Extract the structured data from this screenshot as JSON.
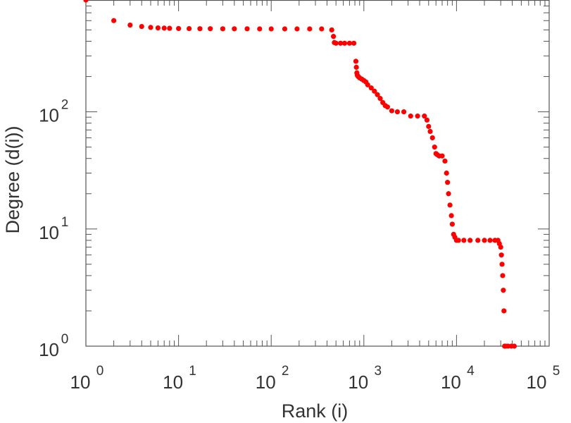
{
  "chart_data": {
    "type": "scatter",
    "title": "",
    "xlabel": "Rank (i)",
    "ylabel": "Degree (d(i))",
    "xscale": "log",
    "yscale": "log",
    "xlim": [
      1,
      100000
    ],
    "ylim": [
      1,
      900
    ],
    "grid": false,
    "legend": "none",
    "marker_color": "#ff0000",
    "x_ticks": [
      {
        "base": "10",
        "exp": "0"
      },
      {
        "base": "10",
        "exp": "1"
      },
      {
        "base": "10",
        "exp": "2"
      },
      {
        "base": "10",
        "exp": "3"
      },
      {
        "base": "10",
        "exp": "4"
      },
      {
        "base": "10",
        "exp": "5"
      }
    ],
    "y_ticks": [
      {
        "base": "10",
        "exp": "0"
      },
      {
        "base": "10",
        "exp": "1"
      },
      {
        "base": "10",
        "exp": "2"
      }
    ],
    "series": [
      {
        "x": [
          1,
          2,
          3,
          4,
          5,
          6,
          7,
          8,
          10,
          13,
          17,
          22,
          30,
          40,
          55,
          75,
          100,
          140,
          190,
          260,
          350,
          450,
          470,
          480,
          500,
          560,
          620,
          700,
          780,
          820,
          830,
          840,
          850,
          870,
          900,
          950,
          1000,
          1050,
          1100,
          1200,
          1300,
          1400,
          1500,
          1600,
          1700,
          1800,
          2000,
          2300,
          2700,
          3200,
          3800,
          4500,
          4800,
          5000,
          5200,
          5500,
          5800,
          6000,
          6200,
          6500,
          7000,
          7500,
          7800,
          8000,
          8200,
          8500,
          8800,
          9000,
          9300,
          9600,
          10000,
          10500,
          12000,
          14000,
          17000,
          20000,
          23000,
          26000,
          28000,
          29000,
          30000,
          30500,
          31000,
          31500,
          32000,
          32500,
          33000,
          34000,
          36000,
          39000,
          42000
        ],
        "y": [
          900,
          600,
          550,
          535,
          525,
          520,
          518,
          516,
          514,
          513,
          512,
          512,
          511,
          511,
          511,
          510,
          510,
          510,
          510,
          510,
          510,
          500,
          440,
          390,
          385,
          385,
          385,
          385,
          385,
          270,
          240,
          215,
          205,
          200,
          195,
          190,
          185,
          180,
          170,
          160,
          150,
          140,
          130,
          120,
          113,
          110,
          102,
          100,
          100,
          92,
          92,
          92,
          85,
          75,
          68,
          60,
          50,
          44,
          43,
          42,
          42,
          38,
          30,
          25,
          20,
          16,
          13,
          11,
          9,
          8.5,
          8,
          8,
          8,
          8,
          8,
          8,
          8,
          8,
          8,
          7.5,
          7,
          6,
          5,
          4,
          3,
          2,
          1,
          1,
          1,
          1,
          1
        ]
      }
    ]
  }
}
